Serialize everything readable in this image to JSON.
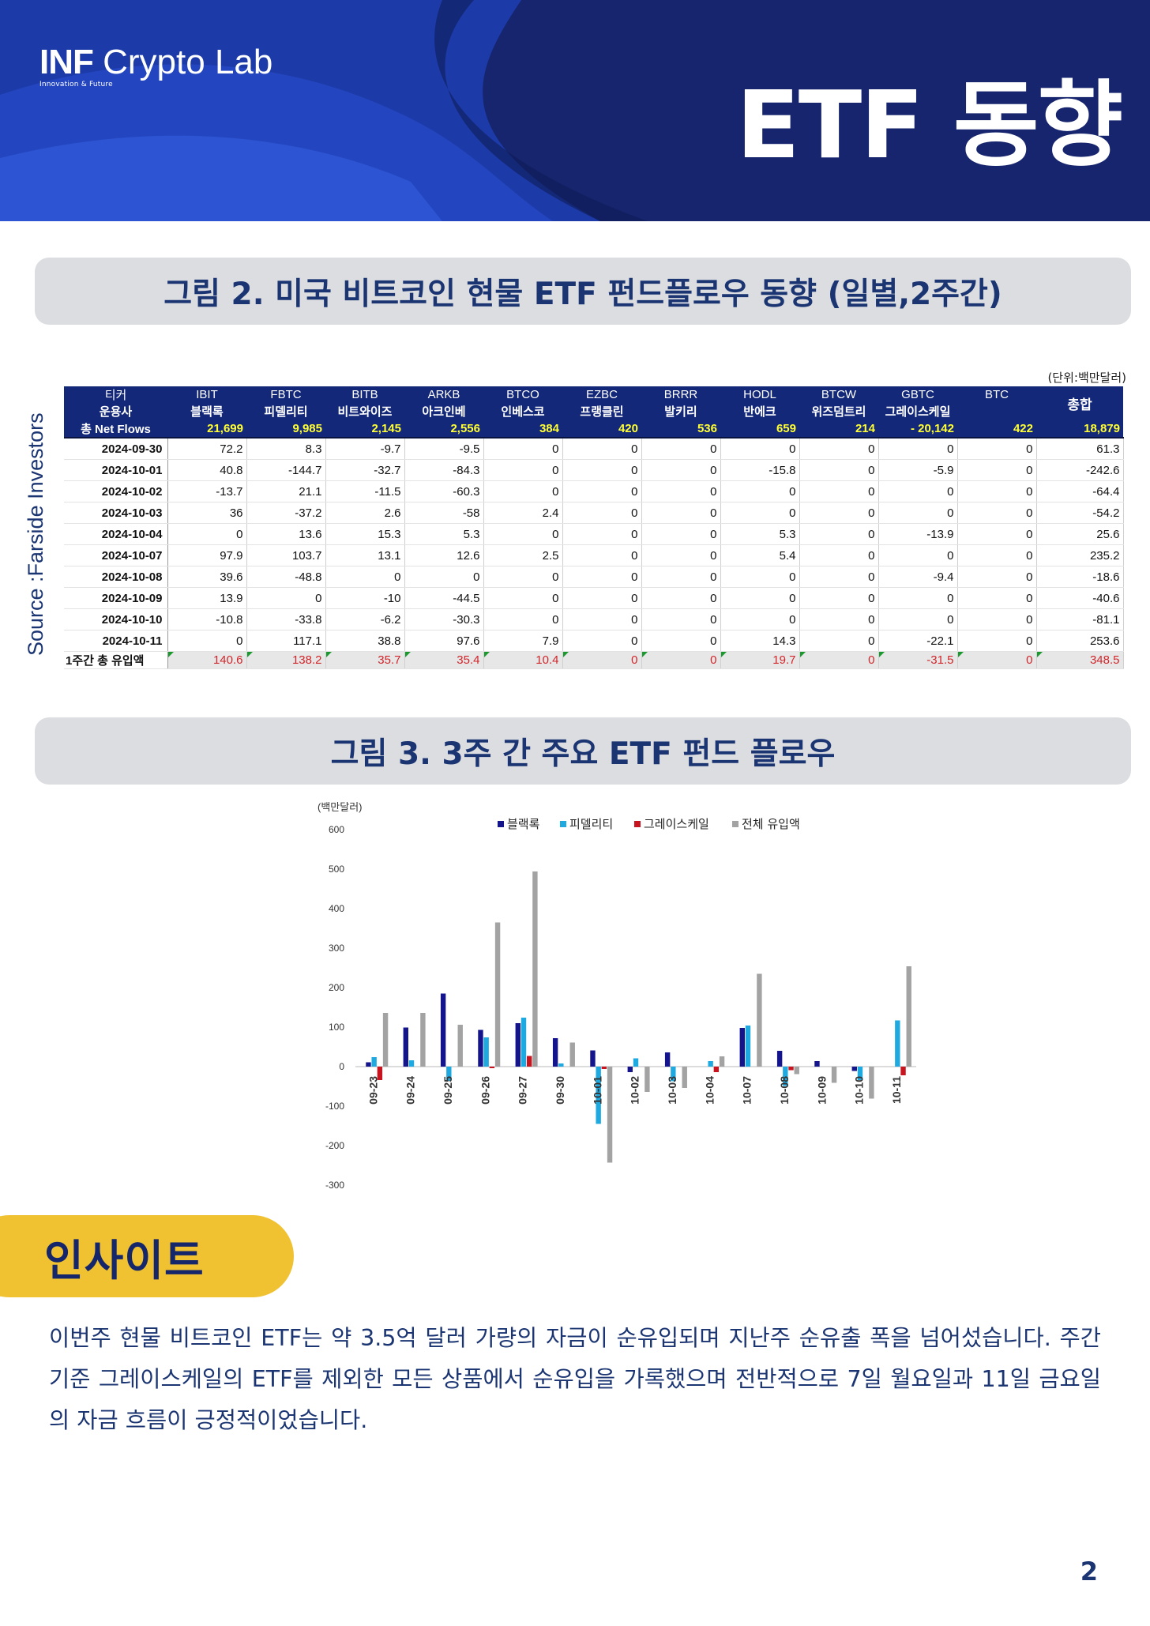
{
  "header": {
    "logo_brand_bold": "INF",
    "logo_brand_rest": "Crypto Lab",
    "logo_tagline": "Innovation & Future",
    "page_title": "ETF 동향",
    "colors": {
      "navy": "#16256d",
      "blue": "#1d3fb0",
      "accent_yellow": "#f0c232"
    }
  },
  "figure2": {
    "title": "그림 2.  미국 비트코인 현물 ETF 펀드플로우 동향 (일별,2주간)",
    "source": "Source :Farside Investors",
    "unit": "(단위:백만달러)",
    "header_ticker_label": "티커",
    "header_manager_label": "운용사",
    "header_netflow_label": "총 Net Flows",
    "total_label": "총합",
    "tickers": [
      "IBIT",
      "FBTC",
      "BITB",
      "ARKB",
      "BTCO",
      "EZBC",
      "BRRR",
      "HODL",
      "BTCW",
      "GBTC",
      "BTC"
    ],
    "managers": [
      "블랙록",
      "피델리티",
      "비트와이즈",
      "아크인베",
      "인베스코",
      "프랭클린",
      "발키리",
      "반에크",
      "위즈덤트리",
      "그레이스케일",
      ""
    ],
    "net_flows": [
      "21,699",
      "9,985",
      "2,145",
      "2,556",
      "384",
      "420",
      "536",
      "659",
      "214",
      "-    20,142",
      "422",
      "18,879"
    ],
    "rows": [
      {
        "date": "2024-09-30",
        "values": [
          "72.2",
          "8.3",
          "-9.7",
          "-9.5",
          "0",
          "0",
          "0",
          "0",
          "0",
          "0",
          "0",
          "61.3"
        ]
      },
      {
        "date": "2024-10-01",
        "values": [
          "40.8",
          "-144.7",
          "-32.7",
          "-84.3",
          "0",
          "0",
          "0",
          "-15.8",
          "0",
          "-5.9",
          "0",
          "-242.6"
        ]
      },
      {
        "date": "2024-10-02",
        "values": [
          "-13.7",
          "21.1",
          "-11.5",
          "-60.3",
          "0",
          "0",
          "0",
          "0",
          "0",
          "0",
          "0",
          "-64.4"
        ]
      },
      {
        "date": "2024-10-03",
        "values": [
          "36",
          "-37.2",
          "2.6",
          "-58",
          "2.4",
          "0",
          "0",
          "0",
          "0",
          "0",
          "0",
          "-54.2"
        ]
      },
      {
        "date": "2024-10-04",
        "values": [
          "0",
          "13.6",
          "15.3",
          "5.3",
          "0",
          "0",
          "0",
          "5.3",
          "0",
          "-13.9",
          "0",
          "25.6"
        ]
      },
      {
        "date": "2024-10-07",
        "values": [
          "97.9",
          "103.7",
          "13.1",
          "12.6",
          "2.5",
          "0",
          "0",
          "5.4",
          "0",
          "0",
          "0",
          "235.2"
        ]
      },
      {
        "date": "2024-10-08",
        "values": [
          "39.6",
          "-48.8",
          "0",
          "0",
          "0",
          "0",
          "0",
          "0",
          "0",
          "-9.4",
          "0",
          "-18.6"
        ]
      },
      {
        "date": "2024-10-09",
        "values": [
          "13.9",
          "0",
          "-10",
          "-44.5",
          "0",
          "0",
          "0",
          "0",
          "0",
          "0",
          "0",
          "-40.6"
        ]
      },
      {
        "date": "2024-10-10",
        "values": [
          "-10.8",
          "-33.8",
          "-6.2",
          "-30.3",
          "0",
          "0",
          "0",
          "0",
          "0",
          "0",
          "0",
          "-81.1"
        ]
      },
      {
        "date": "2024-10-11",
        "values": [
          "0",
          "117.1",
          "38.8",
          "97.6",
          "7.9",
          "0",
          "0",
          "14.3",
          "0",
          "-22.1",
          "0",
          "253.6"
        ]
      }
    ],
    "summary_label": "1주간 총 유입액",
    "summary_values": [
      "140.6",
      "138.2",
      "35.7",
      "35.4",
      "10.4",
      "0",
      "0",
      "19.7",
      "0",
      "-31.5",
      "0",
      "348.5"
    ]
  },
  "figure3": {
    "title": "그림 3.  3주 간 주요 ETF 펀드 플로우"
  },
  "chart_data": {
    "type": "bar",
    "title": "",
    "ylabel": "(백만달러)",
    "xlabel": "",
    "ylim": [
      -300,
      600
    ],
    "yticks": [
      600,
      500,
      400,
      300,
      200,
      100,
      0,
      -100,
      -200,
      -300
    ],
    "grid": false,
    "legend_position": "top",
    "categories": [
      "09-23",
      "09-24",
      "09-25",
      "09-26",
      "09-27",
      "09-30",
      "10-01",
      "10-02",
      "10-03",
      "10-04",
      "10-07",
      "10-08",
      "10-09",
      "10-10",
      "10-11"
    ],
    "series": [
      {
        "name": "블랙록",
        "color": "#14148c",
        "values": [
          11,
          99,
          185,
          93,
          110,
          72,
          41,
          -14,
          36,
          0,
          98,
          40,
          14,
          -11,
          0
        ]
      },
      {
        "name": "피델리티",
        "color": "#1fa9e1",
        "values": [
          24,
          16,
          -36,
          74,
          124,
          8,
          -145,
          21,
          -37,
          14,
          104,
          -49,
          0,
          -34,
          117
        ]
      },
      {
        "name": "그레이스케일",
        "color": "#c8141e",
        "values": [
          -34,
          0,
          0,
          -4,
          27,
          0,
          -6,
          0,
          0,
          -14,
          0,
          -9,
          0,
          0,
          -22
        ]
      },
      {
        "name": "전체 유입액",
        "color": "#a3a3a3",
        "values": [
          136,
          136,
          106,
          365,
          494,
          61,
          -243,
          -64,
          -54,
          26,
          235,
          -19,
          -41,
          -81,
          254
        ]
      }
    ]
  },
  "insight": {
    "label": "인사이트",
    "text": "이번주 현물 비트코인 ETF는 약 3.5억 달러 가량의 자금이 순유입되며 지난주 순유출 폭을 넘어섰습니다. 주간 기준 그레이스케일의 ETF를 제외한 모든 상품에서 순유입을 가록했으며 전반적으로 7일 월요일과 11일 금요일의 자금 흐름이 긍정적이었습니다."
  },
  "page_number": "2"
}
